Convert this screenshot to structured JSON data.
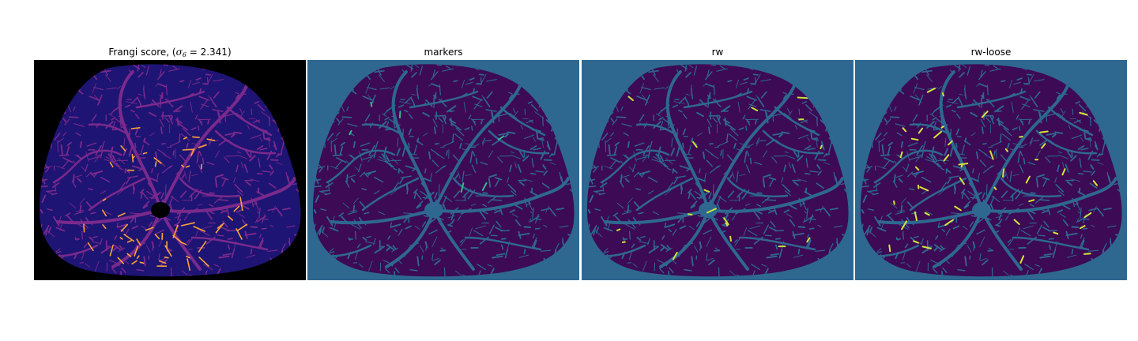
{
  "panels": [
    {
      "id": "frangi",
      "title_prefix": "Frangi score, (",
      "title_sigma": "σ",
      "title_sub": "6",
      "title_suffix": " = 2.341)",
      "colormap": "magma",
      "background_color": "#000000",
      "body_color": "#1e1474",
      "vessel_color": "#7a2a8c",
      "highlight_color": "#fba238"
    },
    {
      "id": "markers",
      "title": "markers",
      "colormap": "viridis",
      "background_color": "#2e6890",
      "body_color": "#3d0a55",
      "vessel_color": "#2e6890",
      "highlight_color": "#38b98a"
    },
    {
      "id": "rw",
      "title": "rw",
      "colormap": "viridis",
      "background_color": "#2e6890",
      "body_color": "#3d0a55",
      "vessel_color": "#2e6890",
      "highlight_color": "#c8e43a"
    },
    {
      "id": "rw-loose",
      "title": "rw-loose",
      "colormap": "viridis",
      "background_color": "#2e6890",
      "body_color": "#3d0a55",
      "vessel_color": "#2e6890",
      "highlight_color": "#d6e63a"
    }
  ]
}
